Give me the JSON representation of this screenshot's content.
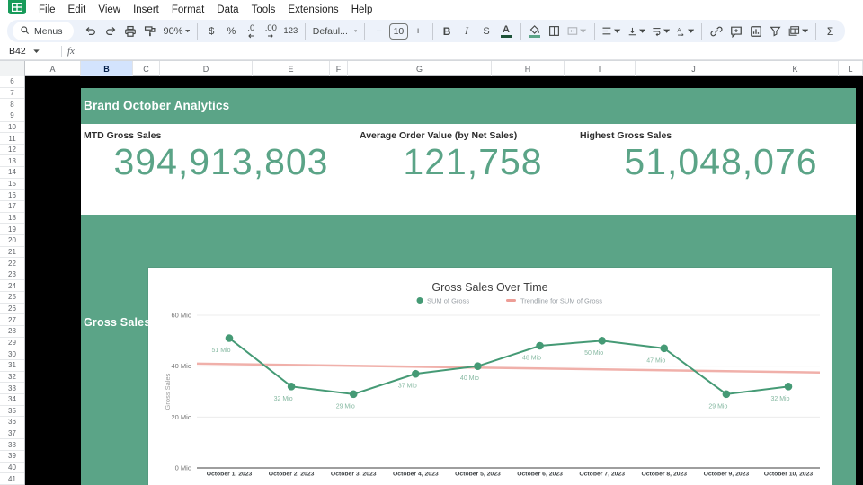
{
  "menubar": {
    "items": [
      "File",
      "Edit",
      "View",
      "Insert",
      "Format",
      "Data",
      "Tools",
      "Extensions",
      "Help"
    ]
  },
  "toolbar": {
    "menus_label": "Menus",
    "zoom": "90%",
    "currency": "$",
    "percent": "%",
    "decrease_decimal": ".0",
    "increase_decimal": ".00",
    "more_formats": "123",
    "font_family": "Defaul...",
    "decrease_font": "−",
    "font_size": "10",
    "increase_font": "+",
    "bold": "B",
    "italic": "I",
    "strikethrough": "S",
    "text_color": "A",
    "functions": "Σ"
  },
  "formula_bar": {
    "name_box": "B42",
    "fx_label": "fx"
  },
  "grid": {
    "columns": [
      "A",
      "B",
      "C",
      "D",
      "E",
      "F",
      "G",
      "H",
      "I",
      "J",
      "K",
      "L"
    ],
    "selected_column": "B",
    "rows": [
      6,
      7,
      8,
      9,
      10,
      11,
      12,
      13,
      14,
      15,
      16,
      17,
      18,
      19,
      20,
      21,
      22,
      23,
      24,
      25,
      26,
      27,
      28,
      29,
      30,
      31,
      32,
      33,
      34,
      35,
      36,
      37,
      38,
      39,
      40,
      41
    ]
  },
  "dashboard": {
    "title": "Brand October Analytics",
    "section_title": "Gross Sales Over Time",
    "accent_green": "#5ba487",
    "kpis": [
      {
        "label": "MTD Gross Sales",
        "value": "394,913,803"
      },
      {
        "label": "Average Order Value (by Net Sales)",
        "value": "121,758"
      },
      {
        "label": "Highest Gross Sales",
        "value": "51,048,076"
      }
    ]
  },
  "chart_data": {
    "type": "line",
    "title": "Gross Sales Over Time",
    "xlabel": "",
    "ylabel": "Gross Sales",
    "x": [
      "October 1, 2023",
      "October 2, 2023",
      "October 3, 2023",
      "October 4, 2023",
      "October 5, 2023",
      "October 6, 2023",
      "October 7, 2023",
      "October 8, 2023",
      "October 9, 2023",
      "October 10, 2023"
    ],
    "series": [
      {
        "name": "SUM of Gross",
        "type": "line",
        "color": "#459a75",
        "values": [
          51,
          32,
          29,
          37,
          40,
          48,
          50,
          47,
          29,
          32
        ],
        "labels": [
          "51 Mio",
          "32 Mio",
          "29 Mio",
          "37 Mio",
          "40 Mio",
          "48 Mio",
          "50 Mio",
          "47 Mio",
          "29 Mio",
          "32 Mio"
        ]
      },
      {
        "name": "Trendline for SUM of Gross",
        "type": "trendline",
        "color": "#ed9d96",
        "values": [
          41,
          37.5
        ]
      }
    ],
    "ylim": [
      0,
      60
    ],
    "ytick_values": [
      0,
      20,
      40,
      60
    ],
    "ytick_labels": [
      "0 Mio",
      "20 Mio",
      "40 Mio",
      "60 Mio"
    ],
    "unit": "Mio",
    "legend_position": "top",
    "grid": true
  }
}
